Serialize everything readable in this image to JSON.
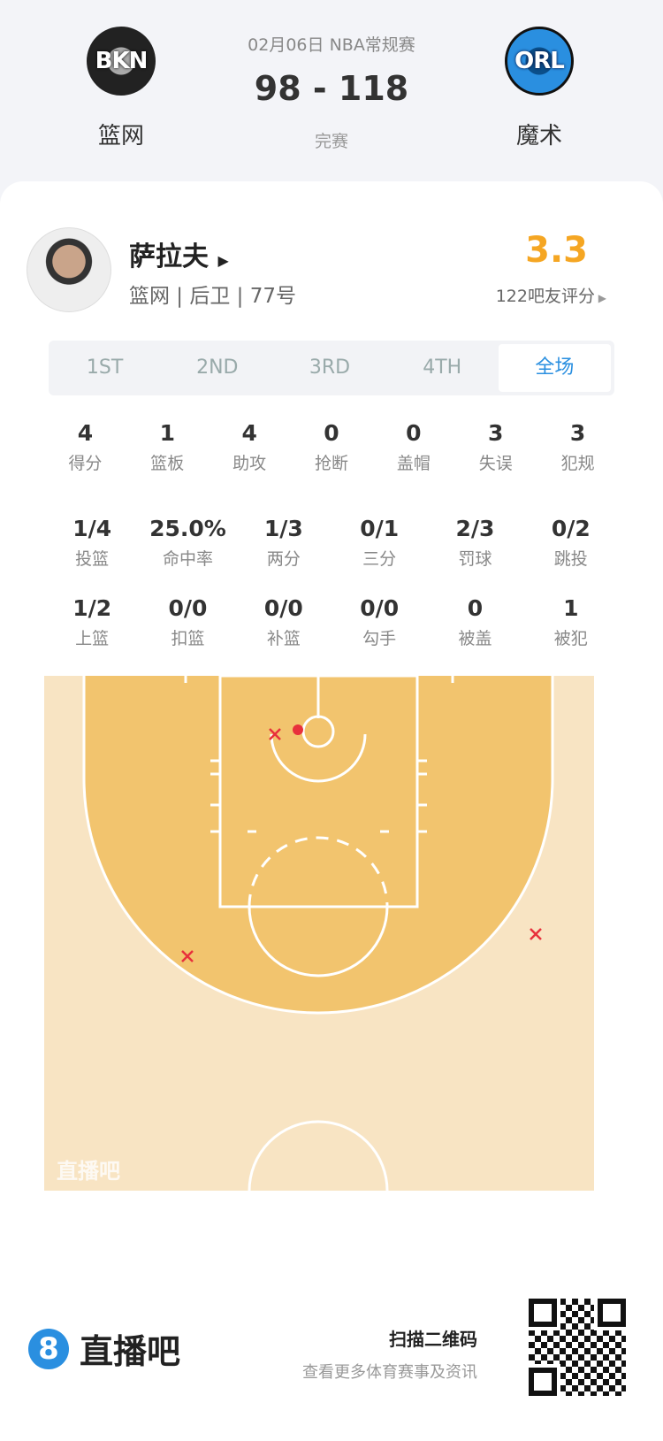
{
  "header": {
    "date": "02月06日 NBA常规赛",
    "score": "98 - 118",
    "status": "完赛",
    "home": {
      "abbr": "BKN",
      "name": "篮网"
    },
    "away": {
      "abbr": "ORL",
      "name": "魔术"
    }
  },
  "player": {
    "name": "萨拉夫",
    "info": "篮网 | 后卫 | 77号",
    "rating": "3.3",
    "rating_count": "122吧友评分"
  },
  "tabs": [
    {
      "label": "1ST"
    },
    {
      "label": "2ND"
    },
    {
      "label": "3RD"
    },
    {
      "label": "4TH"
    },
    {
      "label": "全场",
      "active": true
    }
  ],
  "stats": [
    [
      {
        "v": "4",
        "l": "得分"
      },
      {
        "v": "1",
        "l": "篮板"
      },
      {
        "v": "4",
        "l": "助攻"
      },
      {
        "v": "0",
        "l": "抢断"
      },
      {
        "v": "0",
        "l": "盖帽"
      },
      {
        "v": "3",
        "l": "失误"
      },
      {
        "v": "3",
        "l": "犯规"
      }
    ],
    [
      {
        "v": "1/4",
        "l": "投篮"
      },
      {
        "v": "25.0%",
        "l": "命中率"
      },
      {
        "v": "1/3",
        "l": "两分"
      },
      {
        "v": "0/1",
        "l": "三分"
      },
      {
        "v": "2/3",
        "l": "罚球"
      },
      {
        "v": "0/2",
        "l": "跳投"
      }
    ],
    [
      {
        "v": "1/2",
        "l": "上篮"
      },
      {
        "v": "0/0",
        "l": "扣篮"
      },
      {
        "v": "0/0",
        "l": "补篮"
      },
      {
        "v": "0/0",
        "l": "勾手"
      },
      {
        "v": "0",
        "l": "被盖"
      },
      {
        "v": "1",
        "l": "被犯"
      }
    ]
  ],
  "shot_chart": {
    "watermark": "直播吧",
    "shots": [
      {
        "result": "made"
      },
      {
        "result": "missed"
      },
      {
        "result": "missed"
      },
      {
        "result": "missed"
      }
    ],
    "colors": {
      "made": "#e8303c",
      "missed": "#e8303c",
      "inside": "#f2c46e",
      "outside": "#f8e4c3"
    }
  },
  "footer": {
    "brand": "直播吧",
    "brand_icon": "8",
    "scan": "扫描二维码",
    "scan_sub": "查看更多体育赛事及资讯"
  }
}
